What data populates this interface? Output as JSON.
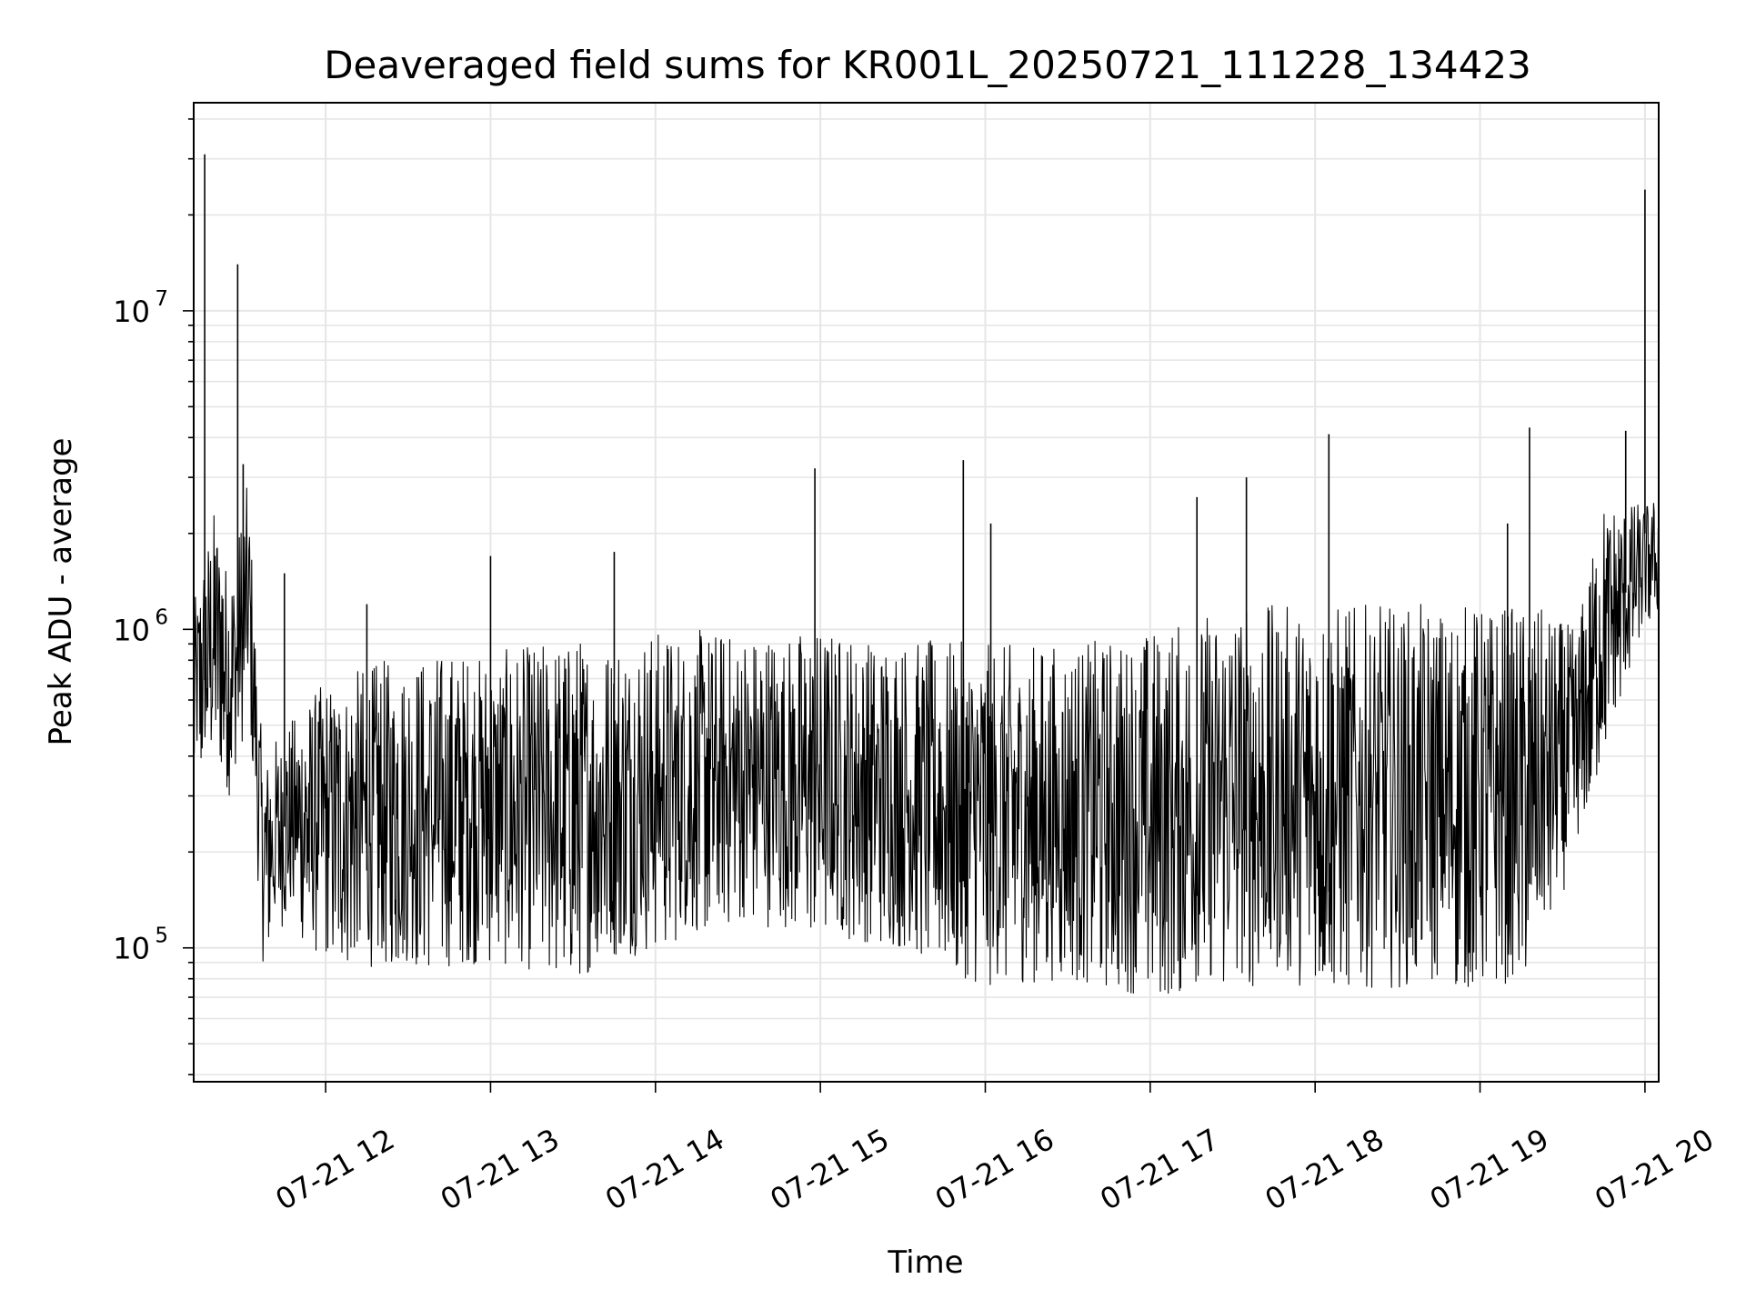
{
  "chart_data": {
    "type": "line",
    "title": "Deaveraged field sums for KR001L_20250721_111228_134423",
    "xlabel": "Time",
    "ylabel": "Peak ADU - average",
    "yscale": "log",
    "ylim": [
      38000,
      45000000
    ],
    "xlim": [
      "07-21 11:12",
      "07-21 20:05"
    ],
    "grid": true,
    "line_color": "#000000",
    "grid_color": "#e6e6e6",
    "x_ticks": [
      "07-21 12",
      "07-21 13",
      "07-21 14",
      "07-21 15",
      "07-21 16",
      "07-21 17",
      "07-21 18",
      "07-21 19",
      "07-21 20"
    ],
    "y_ticks": [
      {
        "value": 100000,
        "label": "10",
        "exp": "5"
      },
      {
        "value": 1000000,
        "label": "10",
        "exp": "6"
      },
      {
        "value": 10000000,
        "label": "10",
        "exp": "7"
      }
    ],
    "envelope": {
      "x": [
        "07-21 11:12",
        "07-21 11:20",
        "07-21 11:25",
        "07-21 11:32",
        "07-21 11:37",
        "07-21 11:45",
        "07-21 12:00",
        "07-21 12:30",
        "07-21 13:00",
        "07-21 13:30",
        "07-21 14:00",
        "07-21 14:30",
        "07-21 15:00",
        "07-21 15:30",
        "07-21 16:00",
        "07-21 16:30",
        "07-21 17:00",
        "07-21 17:30",
        "07-21 18:00",
        "07-21 18:30",
        "07-21 19:00",
        "07-21 19:20",
        "07-21 19:35",
        "07-21 19:45",
        "07-21 20:00",
        "07-21 20:05"
      ],
      "low": [
        300000,
        400000,
        300000,
        500000,
        90000,
        120000,
        90000,
        85000,
        90000,
        80000,
        100000,
        120000,
        110000,
        100000,
        75000,
        80000,
        70000,
        75000,
        75000,
        75000,
        75000,
        80000,
        200000,
        400000,
        1000000,
        1100000
      ],
      "high": [
        1200000,
        2500000,
        1500000,
        3000000,
        400000,
        500000,
        700000,
        850000,
        850000,
        950000,
        1000000,
        1000000,
        1000000,
        950000,
        900000,
        900000,
        1000000,
        1200000,
        1200000,
        1200000,
        1200000,
        1200000,
        1000000,
        2500000,
        2500000,
        2600000
      ]
    },
    "spikes": [
      {
        "x": "07-21 11:16",
        "y": 31000000
      },
      {
        "x": "07-21 11:28",
        "y": 14000000
      },
      {
        "x": "07-21 11:30",
        "y": 3300000
      },
      {
        "x": "07-21 11:45",
        "y": 1500000
      },
      {
        "x": "07-21 12:15",
        "y": 1200000
      },
      {
        "x": "07-21 13:00",
        "y": 1700000
      },
      {
        "x": "07-21 13:45",
        "y": 1750000
      },
      {
        "x": "07-21 14:58",
        "y": 3200000
      },
      {
        "x": "07-21 15:52",
        "y": 3400000
      },
      {
        "x": "07-21 16:02",
        "y": 2150000
      },
      {
        "x": "07-21 17:17",
        "y": 2600000
      },
      {
        "x": "07-21 17:35",
        "y": 3000000
      },
      {
        "x": "07-21 18:05",
        "y": 4100000
      },
      {
        "x": "07-21 19:10",
        "y": 2150000
      },
      {
        "x": "07-21 19:18",
        "y": 4300000
      },
      {
        "x": "07-21 19:53",
        "y": 4200000
      },
      {
        "x": "07-21 20:00",
        "y": 24000000
      }
    ]
  }
}
